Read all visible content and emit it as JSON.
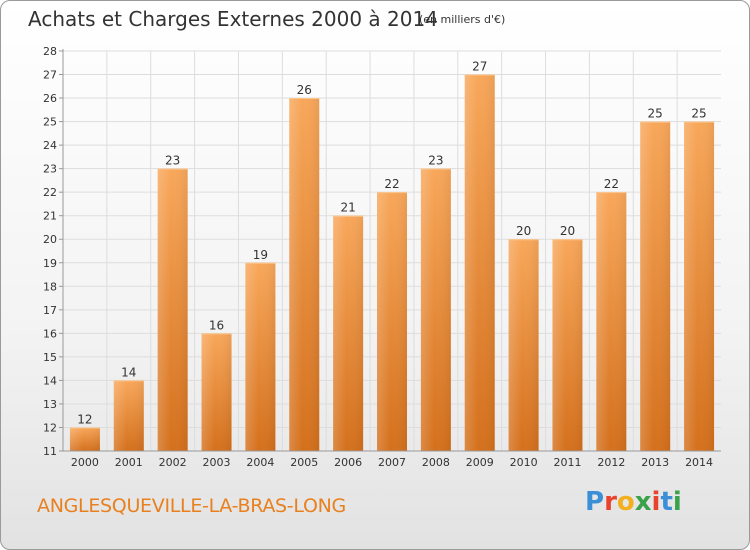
{
  "header": {
    "title": "Achats et Charges Externes 2000 à 2014",
    "unit": "(en milliers d'€)"
  },
  "footer": {
    "commune": "ANGLESQUEVILLE-LA-BRAS-LONG"
  },
  "logo": {
    "letters": [
      "P",
      "r",
      "o",
      "x",
      "i",
      "t",
      "i"
    ],
    "colors": [
      "#3b8fd6",
      "#e8432d",
      "#f2b01e",
      "#3aa24a",
      "#e8432d",
      "#3b8fd6",
      "#3aa24a"
    ]
  },
  "colors": {
    "bar_light": "#f8a75a",
    "bar_dark": "#d4701c",
    "grid": "#dddddd",
    "axis": "#999999"
  },
  "chart_data": {
    "type": "bar",
    "title": "Achats et Charges Externes 2000 à 2014",
    "subtitle": "(en milliers d'€)",
    "categories": [
      "2000",
      "2001",
      "2002",
      "2003",
      "2004",
      "2005",
      "2006",
      "2007",
      "2008",
      "2009",
      "2010",
      "2011",
      "2012",
      "2013",
      "2014"
    ],
    "values": [
      12,
      14,
      23,
      16,
      19,
      26,
      21,
      22,
      23,
      27,
      20,
      20,
      22,
      25,
      25
    ],
    "ylim": [
      11,
      28
    ],
    "yticks": [
      11,
      12,
      13,
      14,
      15,
      16,
      17,
      18,
      19,
      20,
      21,
      22,
      23,
      24,
      25,
      26,
      27,
      28
    ],
    "grid": true,
    "data_labels": true
  }
}
